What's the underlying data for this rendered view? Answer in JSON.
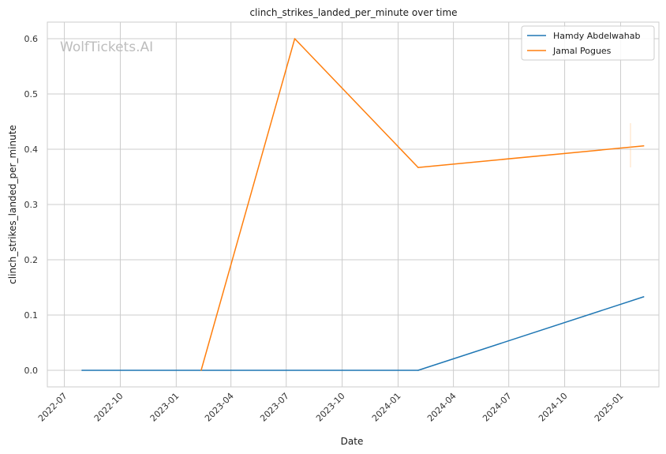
{
  "chart_data": {
    "type": "line",
    "title": "clinch_strikes_landed_per_minute over time",
    "xlabel": "Date",
    "ylabel": "clinch_strikes_landed_per_minute",
    "watermark": "WolfTickets.AI",
    "x_axis": {
      "type": "date",
      "range": [
        "2022-06-03",
        "2025-03-05"
      ],
      "ticks": [
        "2022-07",
        "2022-10",
        "2023-01",
        "2023-04",
        "2023-07",
        "2023-10",
        "2024-01",
        "2024-04",
        "2024-07",
        "2024-10",
        "2025-01"
      ]
    },
    "y_axis": {
      "range": [
        -0.03,
        0.63
      ],
      "ticks": [
        "0.0",
        "0.1",
        "0.2",
        "0.3",
        "0.4",
        "0.5",
        "0.6"
      ]
    },
    "grid": true,
    "legend_position": "top-right",
    "series": [
      {
        "name": "Hamdy Abdelwahab",
        "color": "#1f77b4",
        "points": [
          {
            "x": "2022-07-30",
            "y": 0.0
          },
          {
            "x": "2024-02-03",
            "y": 0.0
          },
          {
            "x": "2025-02-08",
            "y": 0.133
          }
        ]
      },
      {
        "name": "Jamal Pogues",
        "color": "#ff7f0e",
        "points": [
          {
            "x": "2023-02-11",
            "y": 0.0
          },
          {
            "x": "2023-07-15",
            "y": 0.6
          },
          {
            "x": "2024-02-03",
            "y": 0.367
          },
          {
            "x": "2025-02-08",
            "y": 0.406
          }
        ]
      }
    ]
  }
}
